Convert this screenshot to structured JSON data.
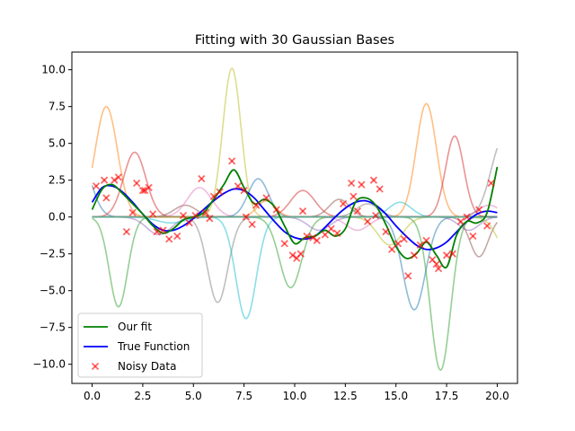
{
  "chart_data": {
    "type": "line",
    "title": "Fitting with 30 Gaussian Bases",
    "xlabel": "",
    "ylabel": "",
    "xlim": [
      -1.0,
      21.0
    ],
    "ylim": [
      -11.3,
      11.2
    ],
    "xticks": [
      0.0,
      2.5,
      5.0,
      7.5,
      10.0,
      12.5,
      15.0,
      17.5,
      20.0
    ],
    "xtick_labels": [
      "0.0",
      "2.5",
      "5.0",
      "7.5",
      "10.0",
      "12.5",
      "15.0",
      "17.5",
      "20.0"
    ],
    "yticks": [
      -10.0,
      -7.5,
      -5.0,
      -2.5,
      0.0,
      2.5,
      5.0,
      7.5,
      10.0
    ],
    "ytick_labels": [
      "−10.0",
      "−7.5",
      "−5.0",
      "−2.5",
      "0.0",
      "2.5",
      "5.0",
      "7.5",
      "10.0"
    ],
    "grid": false,
    "legend_position": "lower left",
    "legend": [
      {
        "label": "Our fit",
        "kind": "line",
        "color": "#008000"
      },
      {
        "label": "True Function",
        "kind": "line",
        "color": "#0000ff"
      },
      {
        "label": "Noisy Data",
        "kind": "marker",
        "marker": "x",
        "color": "#ff0000"
      }
    ],
    "colors": {
      "fit": "#008000",
      "true_function": "#0000ff",
      "noisy_data": "#ff0000"
    },
    "series": [
      {
        "name": "Our fit",
        "color": "#008000",
        "x": [
          0.0,
          0.5,
          1.0,
          1.5,
          2.0,
          2.5,
          3.0,
          3.5,
          4.0,
          4.5,
          5.0,
          5.5,
          6.0,
          6.5,
          7.0,
          7.5,
          8.0,
          8.5,
          9.0,
          9.5,
          10.0,
          10.5,
          11.0,
          11.5,
          12.0,
          12.5,
          13.0,
          13.5,
          14.0,
          14.5,
          15.0,
          15.5,
          16.0,
          16.5,
          17.0,
          17.5,
          18.0,
          18.5,
          19.0,
          19.5,
          20.0
        ],
        "y": [
          0.5,
          1.9,
          2.2,
          1.6,
          0.9,
          0.2,
          -0.6,
          -1.1,
          -0.8,
          -0.2,
          0.0,
          0.3,
          1.2,
          2.2,
          3.2,
          2.0,
          0.9,
          1.2,
          0.7,
          -0.6,
          -1.8,
          -1.4,
          -1.3,
          -0.9,
          -1.3,
          -0.8,
          1.0,
          1.3,
          0.8,
          -0.5,
          -2.0,
          -2.8,
          -2.5,
          -1.7,
          -2.6,
          -3.4,
          -1.2,
          -0.3,
          -0.4,
          0.3,
          3.4
        ]
      },
      {
        "name": "True Function",
        "color": "#0000ff",
        "x": [
          0.0,
          0.5,
          1.0,
          1.5,
          2.0,
          2.5,
          3.0,
          3.5,
          4.0,
          4.5,
          5.0,
          5.5,
          6.0,
          6.5,
          7.0,
          7.5,
          8.0,
          8.5,
          9.0,
          9.5,
          10.0,
          10.5,
          11.0,
          11.5,
          12.0,
          12.5,
          13.0,
          13.5,
          14.0,
          14.5,
          15.0,
          15.5,
          16.0,
          16.5,
          17.0,
          17.5,
          18.0,
          18.5,
          19.0,
          19.5,
          20.0
        ],
        "y": [
          1.0,
          2.0,
          2.1,
          1.7,
          1.0,
          0.2,
          -0.5,
          -0.9,
          -0.9,
          -0.6,
          -0.1,
          0.5,
          1.1,
          1.6,
          1.9,
          1.8,
          1.3,
          0.5,
          -0.3,
          -1.0,
          -1.4,
          -1.5,
          -1.3,
          -0.7,
          0.0,
          0.6,
          1.0,
          1.1,
          0.8,
          0.2,
          -0.6,
          -1.3,
          -1.9,
          -2.2,
          -2.1,
          -1.7,
          -1.0,
          -0.3,
          0.2,
          0.4,
          0.3
        ]
      }
    ],
    "scatter": {
      "name": "Noisy Data",
      "color": "#ff0000",
      "x": [
        0.2,
        0.6,
        0.7,
        1.1,
        1.3,
        1.7,
        2.0,
        2.2,
        2.5,
        2.6,
        2.8,
        3.0,
        3.2,
        3.5,
        3.8,
        4.2,
        4.5,
        4.8,
        5.1,
        5.4,
        5.6,
        5.8,
        6.0,
        6.3,
        6.9,
        7.2,
        7.5,
        7.6,
        7.9,
        8.1,
        8.6,
        9.1,
        9.5,
        9.9,
        10.1,
        10.3,
        10.4,
        10.6,
        10.9,
        11.1,
        11.5,
        11.8,
        12.1,
        12.4,
        12.8,
        12.9,
        13.1,
        13.3,
        13.6,
        13.9,
        14.0,
        14.2,
        14.5,
        14.8,
        15.1,
        15.4,
        15.6,
        15.9,
        16.2,
        16.5,
        16.8,
        17.0,
        17.1,
        17.5,
        17.8,
        18.2,
        18.5,
        18.8,
        19.1,
        19.5,
        19.7
      ],
      "y": [
        2.1,
        2.5,
        1.3,
        2.5,
        2.7,
        -1.0,
        0.3,
        2.3,
        1.8,
        1.8,
        2.0,
        0.2,
        -1.0,
        -0.9,
        -1.5,
        -1.3,
        0.1,
        -0.4,
        0.1,
        2.6,
        0.3,
        -0.1,
        1.4,
        1.7,
        3.8,
        2.1,
        1.8,
        0.0,
        -0.5,
        0.8,
        1.3,
        0.5,
        -1.8,
        -2.6,
        -2.8,
        -2.5,
        0.4,
        -1.3,
        -1.4,
        -1.6,
        -1.2,
        -0.8,
        -1.1,
        0.9,
        2.3,
        1.4,
        0.4,
        2.2,
        -0.3,
        2.5,
        0.1,
        1.9,
        -1.0,
        -2.2,
        -1.8,
        -1.5,
        -4.0,
        -2.6,
        -1.9,
        -1.6,
        -2.9,
        -3.2,
        -3.5,
        -2.6,
        -2.5,
        -0.3,
        0.0,
        -1.3,
        0.5,
        -0.6,
        2.3
      ]
    },
    "basis_count": 30
  }
}
